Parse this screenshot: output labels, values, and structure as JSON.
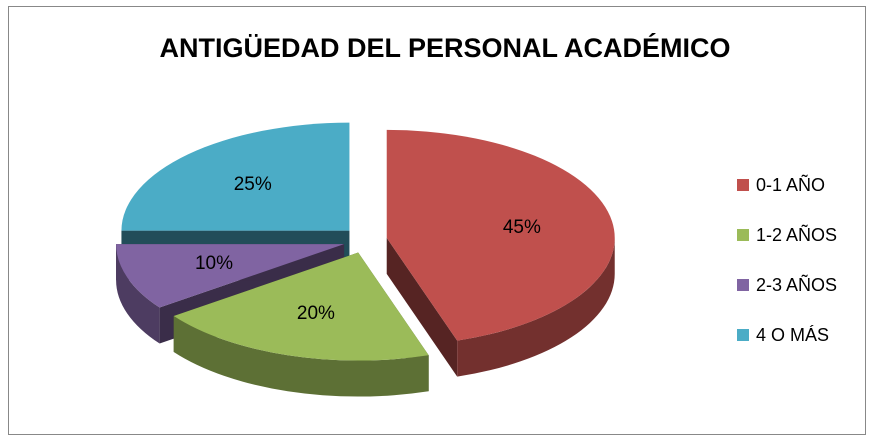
{
  "chart_data": {
    "type": "pie3d",
    "title": "ANTIGÜEDAD DEL PERSONAL ACADÉMICO",
    "categories": [
      "0-1 AÑO",
      "1-2 AÑOS",
      "2-3 AÑOS",
      "4 O MÁS"
    ],
    "values": [
      45,
      20,
      10,
      25
    ],
    "value_labels": [
      "45%",
      "20%",
      "10%",
      "25%"
    ],
    "colors": [
      "#c0504d",
      "#9bbb59",
      "#8064a2",
      "#4bacc6"
    ],
    "legend": "right"
  }
}
